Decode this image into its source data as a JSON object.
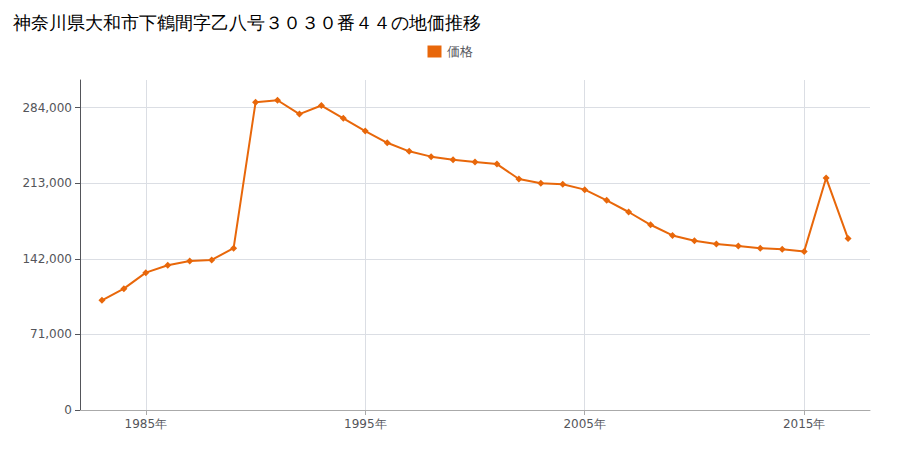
{
  "chart_data": {
    "type": "line",
    "title": "神奈川県大和市下鶴間字乙八号３０３０番４４の地価推移",
    "x": [
      1983,
      1984,
      1985,
      1986,
      1987,
      1988,
      1989,
      1990,
      1991,
      1992,
      1993,
      1994,
      1995,
      1996,
      1997,
      1998,
      1999,
      2000,
      2001,
      2002,
      2003,
      2004,
      2005,
      2006,
      2007,
      2008,
      2009,
      2010,
      2011,
      2012,
      2013,
      2014,
      2015,
      2016,
      2017
    ],
    "series": [
      {
        "name": "価格",
        "color": "#e8670a",
        "values": [
          103000,
          114000,
          129000,
          136000,
          140000,
          141000,
          152000,
          289000,
          291000,
          278000,
          286000,
          274000,
          262000,
          251000,
          243000,
          238000,
          235000,
          233000,
          231000,
          217000,
          213000,
          212000,
          207000,
          197000,
          186000,
          174000,
          164000,
          159000,
          156000,
          154000,
          152000,
          151000,
          149000,
          218000,
          161000
        ]
      }
    ],
    "xlim": [
      1982,
      2018
    ],
    "xticks": [
      {
        "value": 1985,
        "label": "1985年"
      },
      {
        "value": 1995,
        "label": "1995年"
      },
      {
        "value": 2005,
        "label": "2005年"
      },
      {
        "value": 2015,
        "label": "2015年"
      }
    ],
    "ylim": [
      0,
      310000
    ],
    "yticks": [
      0,
      {
        "value": 71000,
        "label": "71,000"
      },
      {
        "value": 142000,
        "label": "142,000"
      },
      {
        "value": 213000,
        "label": "213,000"
      },
      {
        "value": 284000,
        "label": "284,000"
      }
    ],
    "grid": true,
    "legend": "top",
    "marker": "diamond"
  }
}
